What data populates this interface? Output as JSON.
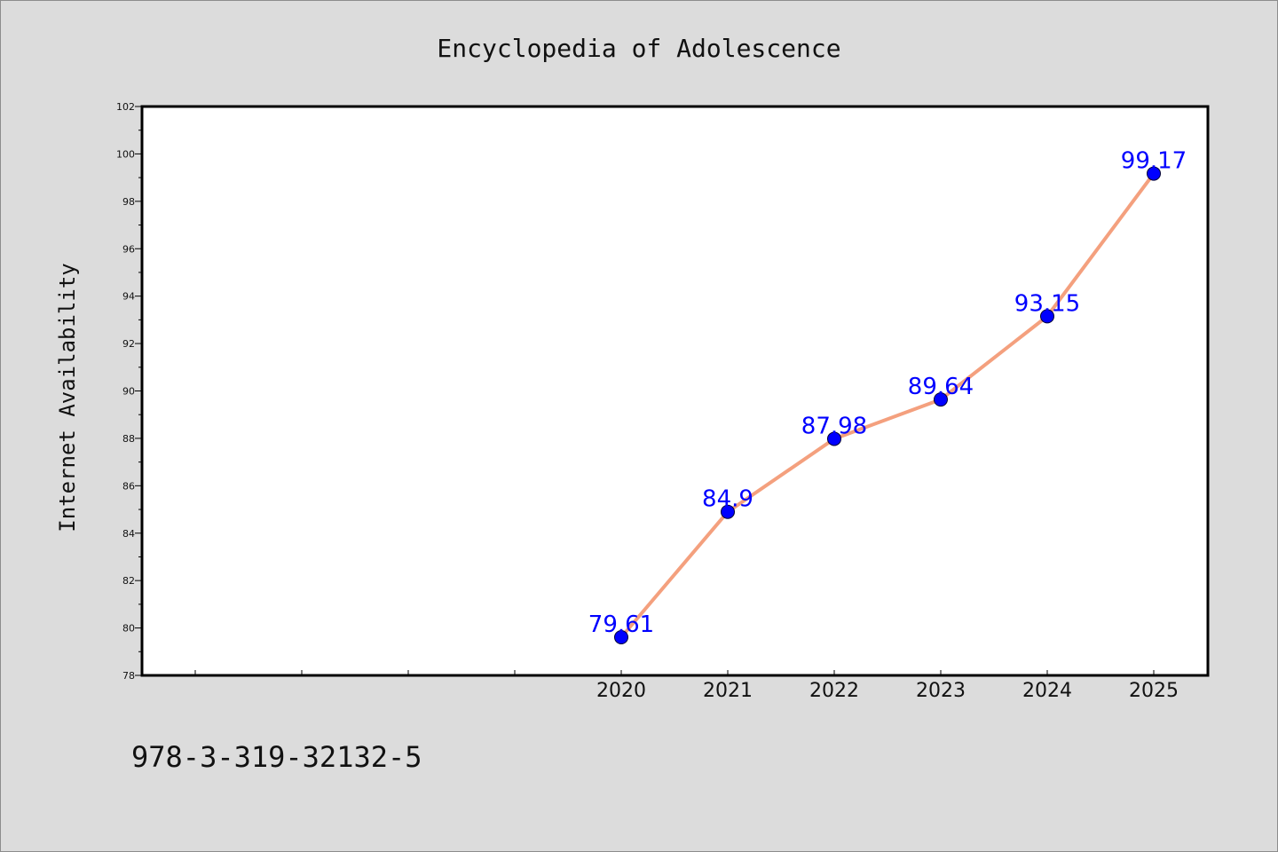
{
  "chart_data": {
    "type": "line",
    "title": "Encyclopedia of Adolescence",
    "xlabel": "",
    "ylabel": "Internet Availability",
    "categories": [
      "2020",
      "2021",
      "2022",
      "2023",
      "2024",
      "2025"
    ],
    "series": [
      {
        "values": [
          79.61,
          84.9,
          87.98,
          89.64,
          93.15,
          99.17
        ]
      }
    ],
    "data_labels": [
      "79.61",
      "84.9",
      "87.98",
      "89.64",
      "93.15",
      "99.17"
    ],
    "ylim": [
      78,
      102
    ],
    "yticks": [
      78,
      80,
      82,
      84,
      86,
      88,
      90,
      92,
      94,
      96,
      98,
      100,
      102
    ],
    "grid": false,
    "legend": "none",
    "colors": {
      "line": "#f4a07e",
      "marker": "#0000ff",
      "data_label": "#0000ff",
      "background": "#dcdcdc",
      "plot_area": "#ffffff"
    }
  },
  "footer": {
    "isbn": "978-3-319-32132-5"
  }
}
